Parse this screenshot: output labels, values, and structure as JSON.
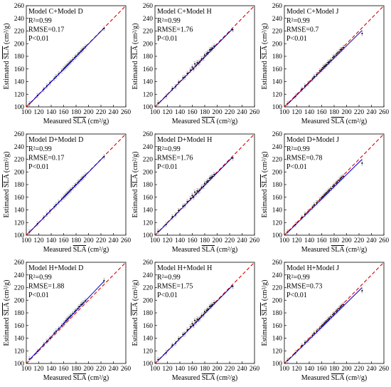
{
  "figure": {
    "xlabel_prefix": "Measured ",
    "ylabel_prefix": "Estimated ",
    "var_label": "SLA",
    "unit_label": " (cm²/g)",
    "colors": {
      "fit": "#0000cc",
      "one_to_one": "#dd0000",
      "points": "#111111",
      "errorbar": "#999999"
    }
  },
  "chart_data": [
    {
      "type": "scatter",
      "title": "Model C+Model D",
      "stats": [
        "R²=0.99",
        "RMSE=0.17",
        "P<0.01"
      ],
      "xlim": [
        100,
        260
      ],
      "ylim": [
        100,
        260
      ],
      "xticks": [
        100,
        120,
        140,
        160,
        180,
        200,
        220,
        240,
        260
      ],
      "yticks": [
        100,
        120,
        140,
        160,
        180,
        200,
        220,
        240,
        260
      ],
      "fit_line": [
        [
          105,
          104.5
        ],
        [
          225,
          224.5
        ]
      ],
      "one_to_one": [
        [
          100,
          100
        ],
        [
          260,
          260
        ]
      ],
      "points": [
        [
          105,
          105
        ],
        [
          118,
          118
        ],
        [
          128,
          128
        ],
        [
          133,
          133
        ],
        [
          138,
          138
        ],
        [
          145,
          145
        ],
        [
          148,
          148
        ],
        [
          152,
          152
        ],
        [
          157,
          157
        ],
        [
          160,
          160
        ],
        [
          162,
          162
        ],
        [
          164,
          164
        ],
        [
          166,
          166
        ],
        [
          168,
          168
        ],
        [
          170,
          170
        ],
        [
          172,
          172
        ],
        [
          175,
          175
        ],
        [
          178,
          178
        ],
        [
          180,
          180
        ],
        [
          183,
          183
        ],
        [
          185,
          185
        ],
        [
          188,
          188
        ],
        [
          190,
          190
        ],
        [
          192,
          192
        ],
        [
          195,
          195
        ],
        [
          225,
          224
        ]
      ]
    },
    {
      "type": "scatter",
      "title": "Model C+Model H",
      "stats": [
        "R²=0.99",
        "RMSE=1.76",
        "P<0.01"
      ],
      "xlim": [
        100,
        260
      ],
      "ylim": [
        100,
        260
      ],
      "xticks": [
        100,
        120,
        140,
        160,
        180,
        200,
        220,
        240,
        260
      ],
      "yticks": [
        100,
        120,
        140,
        160,
        180,
        200,
        220,
        240,
        260
      ],
      "fit_line": [
        [
          105,
          104.5
        ],
        [
          225,
          223.5
        ]
      ],
      "one_to_one": [
        [
          100,
          100
        ],
        [
          260,
          260
        ]
      ],
      "points": [
        [
          105,
          106
        ],
        [
          118,
          117
        ],
        [
          128,
          129
        ],
        [
          133,
          132
        ],
        [
          138,
          139
        ],
        [
          145,
          146
        ],
        [
          148,
          147
        ],
        [
          152,
          153
        ],
        [
          157,
          158
        ],
        [
          160,
          163
        ],
        [
          162,
          160
        ],
        [
          164,
          168
        ],
        [
          166,
          165
        ],
        [
          168,
          170
        ],
        [
          170,
          169
        ],
        [
          172,
          171
        ],
        [
          175,
          176
        ],
        [
          178,
          177
        ],
        [
          180,
          182
        ],
        [
          183,
          184
        ],
        [
          185,
          186
        ],
        [
          188,
          190
        ],
        [
          190,
          191
        ],
        [
          192,
          193
        ],
        [
          195,
          196
        ],
        [
          225,
          222
        ]
      ]
    },
    {
      "type": "scatter",
      "title": "Model C+Model J",
      "stats": [
        "R²=0.99",
        "RMSE=0.7",
        "P<0.01"
      ],
      "xlim": [
        100,
        260
      ],
      "ylim": [
        100,
        260
      ],
      "xticks": [
        100,
        120,
        140,
        160,
        180,
        200,
        220,
        240,
        260
      ],
      "yticks": [
        100,
        120,
        140,
        160,
        180,
        200,
        220,
        240,
        260
      ],
      "fit_line": [
        [
          105,
          104
        ],
        [
          225,
          221
        ]
      ],
      "one_to_one": [
        [
          100,
          100
        ],
        [
          260,
          260
        ]
      ],
      "points": [
        [
          105,
          105
        ],
        [
          118,
          117
        ],
        [
          128,
          128
        ],
        [
          133,
          133
        ],
        [
          138,
          137
        ],
        [
          145,
          144
        ],
        [
          148,
          148
        ],
        [
          152,
          151
        ],
        [
          157,
          157
        ],
        [
          160,
          159
        ],
        [
          162,
          162
        ],
        [
          164,
          164
        ],
        [
          166,
          165
        ],
        [
          168,
          167
        ],
        [
          170,
          170
        ],
        [
          172,
          171
        ],
        [
          175,
          174
        ],
        [
          178,
          178
        ],
        [
          180,
          180
        ],
        [
          183,
          182
        ],
        [
          185,
          185
        ],
        [
          188,
          187
        ],
        [
          190,
          190
        ],
        [
          192,
          191
        ],
        [
          195,
          194
        ],
        [
          225,
          216
        ]
      ]
    },
    {
      "type": "scatter",
      "title": "Model D+Model D",
      "stats": [
        "R²=0.99",
        "RMSE=0.17",
        "P<0.01"
      ],
      "xlim": [
        100,
        260
      ],
      "ylim": [
        100,
        260
      ],
      "xticks": [
        100,
        120,
        140,
        160,
        180,
        200,
        220,
        240,
        260
      ],
      "yticks": [
        100,
        120,
        140,
        160,
        180,
        200,
        220,
        240,
        260
      ],
      "fit_line": [
        [
          105,
          104.5
        ],
        [
          225,
          224.5
        ]
      ],
      "one_to_one": [
        [
          100,
          100
        ],
        [
          260,
          260
        ]
      ],
      "points": [
        [
          105,
          105
        ],
        [
          118,
          118
        ],
        [
          128,
          128
        ],
        [
          133,
          133
        ],
        [
          138,
          138
        ],
        [
          145,
          145
        ],
        [
          148,
          148
        ],
        [
          152,
          152
        ],
        [
          157,
          157
        ],
        [
          160,
          160
        ],
        [
          162,
          162
        ],
        [
          164,
          164
        ],
        [
          166,
          166
        ],
        [
          168,
          168
        ],
        [
          170,
          170
        ],
        [
          172,
          172
        ],
        [
          175,
          175
        ],
        [
          178,
          178
        ],
        [
          180,
          180
        ],
        [
          183,
          183
        ],
        [
          185,
          185
        ],
        [
          188,
          188
        ],
        [
          190,
          190
        ],
        [
          192,
          192
        ],
        [
          195,
          195
        ],
        [
          225,
          224
        ]
      ]
    },
    {
      "type": "scatter",
      "title": "Model D+Model H",
      "stats": [
        "R²=0.99",
        "RMSE=1.76",
        "P<0.01"
      ],
      "xlim": [
        100,
        260
      ],
      "ylim": [
        100,
        260
      ],
      "xticks": [
        100,
        120,
        140,
        160,
        180,
        200,
        220,
        240,
        260
      ],
      "yticks": [
        100,
        120,
        140,
        160,
        180,
        200,
        220,
        240,
        260
      ],
      "fit_line": [
        [
          105,
          104.5
        ],
        [
          225,
          223.5
        ]
      ],
      "one_to_one": [
        [
          100,
          100
        ],
        [
          260,
          260
        ]
      ],
      "points": [
        [
          105,
          106
        ],
        [
          118,
          117
        ],
        [
          128,
          129
        ],
        [
          133,
          132
        ],
        [
          138,
          139
        ],
        [
          145,
          146
        ],
        [
          148,
          147
        ],
        [
          152,
          153
        ],
        [
          157,
          158
        ],
        [
          160,
          163
        ],
        [
          162,
          160
        ],
        [
          164,
          168
        ],
        [
          166,
          165
        ],
        [
          168,
          170
        ],
        [
          170,
          169
        ],
        [
          172,
          171
        ],
        [
          175,
          176
        ],
        [
          178,
          177
        ],
        [
          180,
          182
        ],
        [
          183,
          184
        ],
        [
          185,
          186
        ],
        [
          188,
          190
        ],
        [
          190,
          191
        ],
        [
          192,
          193
        ],
        [
          195,
          196
        ],
        [
          225,
          222
        ]
      ]
    },
    {
      "type": "scatter",
      "title": "Model D+Model J",
      "stats": [
        "R²=0.99",
        "RMSE=0.78",
        "P<0.01"
      ],
      "xlim": [
        100,
        260
      ],
      "ylim": [
        100,
        260
      ],
      "xticks": [
        100,
        120,
        140,
        160,
        180,
        200,
        220,
        240,
        260
      ],
      "yticks": [
        100,
        120,
        140,
        160,
        180,
        200,
        220,
        240,
        260
      ],
      "fit_line": [
        [
          105,
          104
        ],
        [
          225,
          220
        ]
      ],
      "one_to_one": [
        [
          100,
          100
        ],
        [
          260,
          260
        ]
      ],
      "points": [
        [
          105,
          105
        ],
        [
          118,
          117
        ],
        [
          128,
          128
        ],
        [
          133,
          133
        ],
        [
          138,
          137
        ],
        [
          145,
          144
        ],
        [
          148,
          148
        ],
        [
          152,
          151
        ],
        [
          157,
          156
        ],
        [
          160,
          159
        ],
        [
          162,
          161
        ],
        [
          164,
          163
        ],
        [
          166,
          165
        ],
        [
          168,
          167
        ],
        [
          170,
          169
        ],
        [
          172,
          171
        ],
        [
          175,
          174
        ],
        [
          178,
          177
        ],
        [
          180,
          179
        ],
        [
          183,
          182
        ],
        [
          185,
          184
        ],
        [
          188,
          187
        ],
        [
          190,
          189
        ],
        [
          192,
          191
        ],
        [
          195,
          193
        ],
        [
          225,
          214
        ]
      ]
    },
    {
      "type": "scatter",
      "title": "Model H+Model D",
      "stats": [
        "R²=0.99",
        "RMSE=1.88",
        "P<0.01"
      ],
      "xlim": [
        100,
        260
      ],
      "ylim": [
        100,
        260
      ],
      "xticks": [
        100,
        120,
        140,
        160,
        180,
        200,
        220,
        240,
        260
      ],
      "yticks": [
        100,
        120,
        140,
        160,
        180,
        200,
        220,
        240,
        260
      ],
      "fit_line": [
        [
          105,
          106
        ],
        [
          225,
          230
        ]
      ],
      "one_to_one": [
        [
          100,
          100
        ],
        [
          260,
          260
        ]
      ],
      "points": [
        [
          105,
          107
        ],
        [
          118,
          119
        ],
        [
          128,
          130
        ],
        [
          133,
          135
        ],
        [
          138,
          140
        ],
        [
          145,
          148
        ],
        [
          148,
          151
        ],
        [
          152,
          155
        ],
        [
          157,
          160
        ],
        [
          160,
          163
        ],
        [
          162,
          165
        ],
        [
          164,
          168
        ],
        [
          166,
          170
        ],
        [
          168,
          172
        ],
        [
          170,
          174
        ],
        [
          172,
          176
        ],
        [
          175,
          179
        ],
        [
          178,
          182
        ],
        [
          180,
          184
        ],
        [
          183,
          187
        ],
        [
          185,
          190
        ],
        [
          188,
          193
        ],
        [
          190,
          194
        ],
        [
          192,
          196
        ],
        [
          195,
          199
        ],
        [
          225,
          231
        ]
      ]
    },
    {
      "type": "scatter",
      "title": "Model H+Model H",
      "stats": [
        "R²=0.99",
        "RMSE=1.75",
        "P<0.01"
      ],
      "xlim": [
        100,
        260
      ],
      "ylim": [
        100,
        260
      ],
      "xticks": [
        100,
        120,
        140,
        160,
        180,
        200,
        220,
        240,
        260
      ],
      "yticks": [
        100,
        120,
        140,
        160,
        180,
        200,
        220,
        240,
        260
      ],
      "fit_line": [
        [
          105,
          104.5
        ],
        [
          225,
          223.5
        ]
      ],
      "one_to_one": [
        [
          100,
          100
        ],
        [
          260,
          260
        ]
      ],
      "points": [
        [
          105,
          106
        ],
        [
          118,
          117
        ],
        [
          128,
          129
        ],
        [
          133,
          132
        ],
        [
          138,
          139
        ],
        [
          145,
          146
        ],
        [
          148,
          147
        ],
        [
          152,
          153
        ],
        [
          157,
          158
        ],
        [
          160,
          163
        ],
        [
          162,
          160
        ],
        [
          164,
          168
        ],
        [
          166,
          165
        ],
        [
          168,
          170
        ],
        [
          170,
          169
        ],
        [
          172,
          171
        ],
        [
          175,
          176
        ],
        [
          178,
          177
        ],
        [
          180,
          182
        ],
        [
          183,
          184
        ],
        [
          185,
          186
        ],
        [
          188,
          190
        ],
        [
          190,
          191
        ],
        [
          192,
          193
        ],
        [
          195,
          196
        ],
        [
          225,
          222
        ]
      ]
    },
    {
      "type": "scatter",
      "title": "Model H+Model J",
      "stats": [
        "R²=0.99",
        "RMSE=0.73",
        "P<0.01"
      ],
      "xlim": [
        100,
        260
      ],
      "ylim": [
        100,
        260
      ],
      "xticks": [
        100,
        120,
        140,
        160,
        180,
        200,
        220,
        240,
        260
      ],
      "yticks": [
        100,
        120,
        140,
        160,
        180,
        200,
        220,
        240,
        260
      ],
      "fit_line": [
        [
          105,
          104
        ],
        [
          225,
          220
        ]
      ],
      "one_to_one": [
        [
          100,
          100
        ],
        [
          260,
          260
        ]
      ],
      "points": [
        [
          105,
          105
        ],
        [
          118,
          117
        ],
        [
          128,
          128
        ],
        [
          133,
          133
        ],
        [
          138,
          137
        ],
        [
          145,
          144
        ],
        [
          148,
          148
        ],
        [
          152,
          151
        ],
        [
          157,
          156
        ],
        [
          160,
          159
        ],
        [
          162,
          161
        ],
        [
          164,
          163
        ],
        [
          166,
          165
        ],
        [
          168,
          167
        ],
        [
          170,
          169
        ],
        [
          172,
          171
        ],
        [
          175,
          174
        ],
        [
          178,
          177
        ],
        [
          180,
          179
        ],
        [
          183,
          182
        ],
        [
          185,
          184
        ],
        [
          188,
          187
        ],
        [
          190,
          189
        ],
        [
          192,
          191
        ],
        [
          195,
          193
        ],
        [
          225,
          215
        ]
      ]
    }
  ]
}
